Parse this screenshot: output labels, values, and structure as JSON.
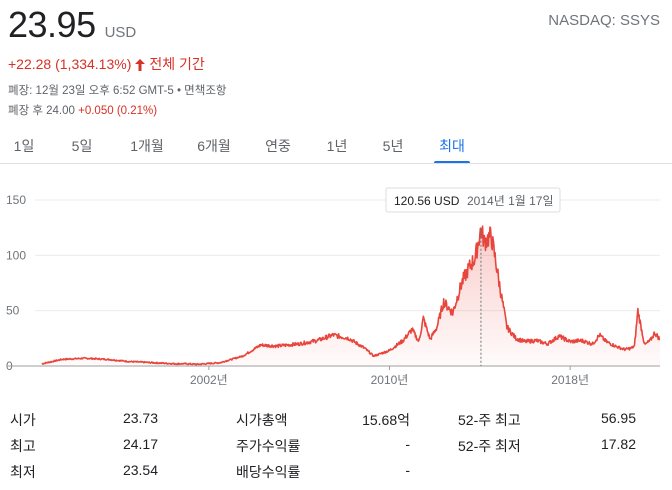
{
  "quote": {
    "price": "23.95",
    "currency": "USD",
    "exchange_ticker": "NASDAQ: SSYS",
    "change": "+22.28 (1,334.13%)",
    "change_period": "전체 기간",
    "close_info": "폐장: 12월 23일 오후 6:52 GMT-5 • 면책조항",
    "after_hours_prefix": "폐장 후 24.00",
    "after_hours_change": "+0.050 (0.21%)"
  },
  "tabs": [
    {
      "label": "1일"
    },
    {
      "label": "5일"
    },
    {
      "label": "1개월"
    },
    {
      "label": "6개월"
    },
    {
      "label": "연중"
    },
    {
      "label": "1년"
    },
    {
      "label": "5년"
    },
    {
      "label": "최대",
      "active": true
    }
  ],
  "colors": {
    "line": "#e8453c",
    "accent": "#1a73e8",
    "negative": "#d93025"
  },
  "chart_data": {
    "type": "area",
    "y_ticks": [
      0,
      50,
      100,
      150
    ],
    "ylim": [
      0,
      150
    ],
    "x_tick_labels": [
      "2002년",
      "2010년",
      "2018년"
    ],
    "x_ticks": [
      2002,
      2010,
      2018
    ],
    "xlim": [
      1994.3,
      2021.98
    ],
    "grid": true,
    "tooltip": {
      "value": "120.56 USD",
      "date": "2014년 1월 17일"
    },
    "series": [
      {
        "x": [
          1994.6,
          1995.5,
          1996.5,
          1997.5,
          1998.5,
          1999.5,
          2000.5,
          2001.0,
          2001.5,
          2002.5,
          2003.5,
          2004.3,
          2005.0,
          2006.0,
          2006.8,
          2007.5,
          2008.2,
          2008.9,
          2009.3,
          2010.0,
          2010.6,
          2011.0,
          2011.3,
          2011.5,
          2011.8,
          2012.1,
          2012.4,
          2012.8,
          2013.2,
          2013.5,
          2013.8,
          2014.05,
          2014.2,
          2014.5,
          2014.7,
          2014.9,
          2015.2,
          2015.6,
          2016.0,
          2016.5,
          2017.0,
          2017.5,
          2018.0,
          2018.5,
          2019.0,
          2019.3,
          2019.6,
          2020.0,
          2020.4,
          2020.7,
          2020.85,
          2021.0,
          2021.3,
          2021.55,
          2021.75,
          2021.98
        ],
        "y": [
          2,
          6,
          7,
          6,
          4,
          3,
          2,
          2,
          1.5,
          3,
          9,
          19,
          18,
          20,
          23,
          28,
          25,
          16,
          9,
          14,
          23,
          33,
          22,
          43,
          24,
          35,
          58,
          48,
          75,
          88,
          98,
          124,
          112,
          118,
          95,
          70,
          35,
          25,
          22,
          23,
          20,
          27,
          22,
          23,
          20,
          28,
          22,
          18,
          15,
          16,
          18,
          50,
          19,
          23,
          30,
          24
        ]
      }
    ]
  },
  "stats": {
    "col1": [
      {
        "label": "시가",
        "value": "23.73"
      },
      {
        "label": "최고",
        "value": "24.17"
      },
      {
        "label": "최저",
        "value": "23.54"
      }
    ],
    "col2": [
      {
        "label": "시가총액",
        "value": "15.68억"
      },
      {
        "label": "주가수익률",
        "value": "-"
      },
      {
        "label": "배당수익률",
        "value": "-"
      }
    ],
    "col3": [
      {
        "label": "52-주 최고",
        "value": "56.95"
      },
      {
        "label": "52-주 최저",
        "value": "17.82"
      }
    ]
  }
}
